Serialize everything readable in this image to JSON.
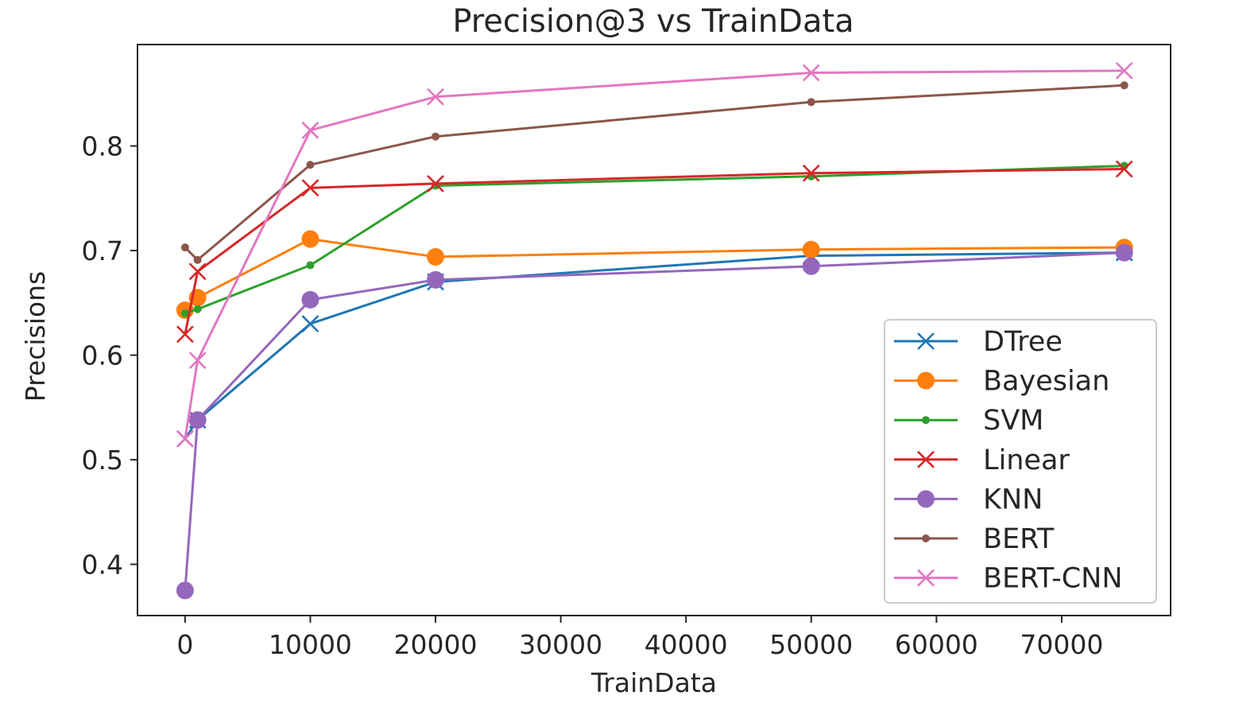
{
  "chart_data": {
    "type": "line",
    "title": "Precision@3 vs TrainData",
    "xlabel": "TrainData",
    "ylabel": "Precisions",
    "xlim": [
      -3800,
      78700
    ],
    "ylim": [
      0.351,
      0.897
    ],
    "xticks": [
      0,
      10000,
      20000,
      30000,
      40000,
      50000,
      60000,
      70000
    ],
    "xtick_labels": [
      "0",
      "10000",
      "20000",
      "30000",
      "40000",
      "50000",
      "60000",
      "70000"
    ],
    "yticks": [
      0.4,
      0.5,
      0.6,
      0.7,
      0.8
    ],
    "ytick_labels": [
      "0.4",
      "0.5",
      "0.6",
      "0.7",
      "0.8"
    ],
    "grid": false,
    "legend_position": "lower-right",
    "x": [
      0,
      1000,
      10000,
      20000,
      50000,
      75000
    ],
    "series": [
      {
        "name": "DTree",
        "color": "#1f77b4",
        "marker": "x",
        "values": [
          0.52,
          0.538,
          0.63,
          0.67,
          0.695,
          0.698
        ]
      },
      {
        "name": "Bayesian",
        "color": "#ff7f0e",
        "marker": "circle",
        "values": [
          0.643,
          0.655,
          0.711,
          0.694,
          0.701,
          0.703
        ]
      },
      {
        "name": "SVM",
        "color": "#2ca02c",
        "marker": "dot",
        "values": [
          0.64,
          0.644,
          0.686,
          0.762,
          0.771,
          0.781
        ]
      },
      {
        "name": "Linear",
        "color": "#d62728",
        "marker": "x",
        "values": [
          0.62,
          0.68,
          0.76,
          0.764,
          0.774,
          0.778
        ]
      },
      {
        "name": "KNN",
        "color": "#9467bd",
        "marker": "circle",
        "values": [
          0.375,
          0.538,
          0.653,
          0.672,
          0.685,
          0.698
        ]
      },
      {
        "name": "BERT",
        "color": "#8c564b",
        "marker": "dot",
        "values": [
          0.703,
          0.691,
          0.782,
          0.809,
          0.842,
          0.858
        ]
      },
      {
        "name": "BERT-CNN",
        "color": "#e377c2",
        "marker": "x",
        "values": [
          0.52,
          0.595,
          0.815,
          0.847,
          0.87,
          0.872
        ]
      }
    ]
  }
}
